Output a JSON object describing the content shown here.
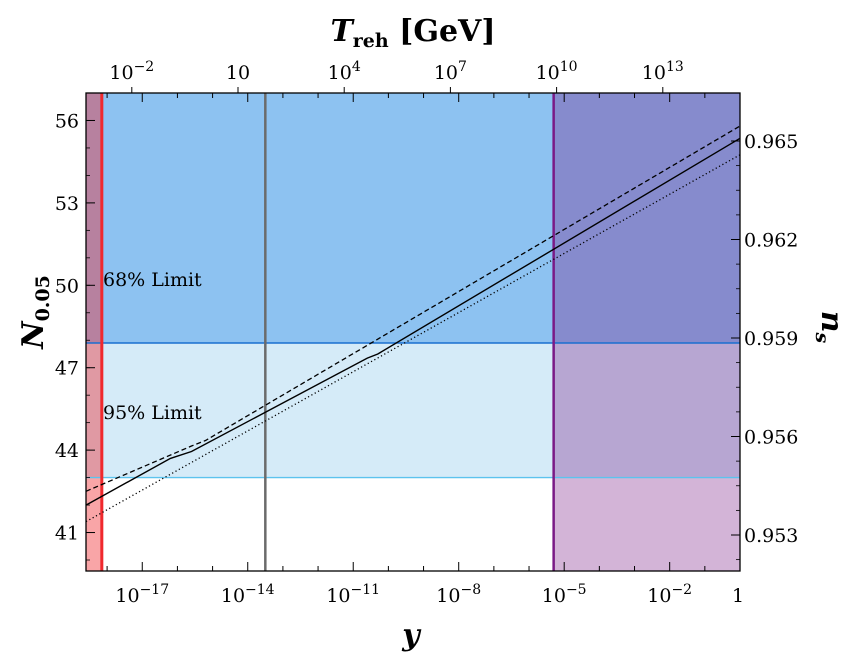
{
  "chart_data": {
    "type": "line",
    "title": "",
    "x_axis_bottom": {
      "label": "y",
      "scale": "log10",
      "range_log10": [
        -18.6,
        0
      ],
      "ticks": [
        {
          "log": -17,
          "base": "10",
          "exp": "−17"
        },
        {
          "log": -14,
          "base": "10",
          "exp": "−14"
        },
        {
          "log": -11,
          "base": "10",
          "exp": "−11"
        },
        {
          "log": -8,
          "base": "10",
          "exp": "−8"
        },
        {
          "log": -5,
          "base": "10",
          "exp": "−5"
        },
        {
          "log": -2,
          "base": "10",
          "exp": "−2"
        },
        {
          "log": 0,
          "base": "1",
          "exp": ""
        }
      ]
    },
    "x_axis_top": {
      "label_main": "T",
      "label_sub": "reh",
      "label_unit": "[GeV]",
      "scale": "log10",
      "ticks": [
        {
          "log": -2,
          "base": "10",
          "exp": "−2"
        },
        {
          "log": 1,
          "base": "10",
          "exp": ""
        },
        {
          "log": 4,
          "base": "10",
          "exp": "4"
        },
        {
          "log": 7,
          "base": "10",
          "exp": "7"
        },
        {
          "log": 10,
          "base": "10",
          "exp": "10"
        },
        {
          "log": 13,
          "base": "10",
          "exp": "13"
        }
      ]
    },
    "y_axis_left": {
      "label_main": "N",
      "label_sub": "0.05",
      "range": [
        39.6,
        57
      ],
      "ticks": [
        "41",
        "44",
        "47",
        "50",
        "53",
        "56"
      ]
    },
    "y_axis_right": {
      "label_main": "n",
      "label_sub": "s",
      "ticks": [
        "0.953",
        "0.956",
        "0.959",
        "0.962",
        "0.965"
      ]
    },
    "regions": {
      "limit_68": {
        "label": "68% Limit",
        "N_min": 47.9,
        "fill": "#8dc2f1",
        "edge": "#1a6fd0",
        "text_color": "#1a6fd0"
      },
      "limit_95": {
        "label": "95% Limit",
        "N_min": 43.0,
        "N_max": 47.9,
        "fill": "#d5ebf8",
        "edge": "#5cc3ee",
        "text_color": "#7ccdf0"
      },
      "excluded_left": {
        "logy_max": -18.15,
        "color": "#f0292d"
      },
      "excluded_right": {
        "logy_min": -5.3,
        "color": "#7a1a86"
      },
      "vertical_marker": {
        "logy": -13.5,
        "color": "#6b6b6b"
      }
    },
    "series": [
      {
        "name": "dashed",
        "style": "dashed",
        "points": [
          [
            -18.6,
            42.5
          ],
          [
            -15.6,
            44.15
          ],
          [
            -15.2,
            44.35
          ],
          [
            0,
            55.8
          ]
        ]
      },
      {
        "name": "solid",
        "style": "solid",
        "points": [
          [
            -18.6,
            42.0
          ],
          [
            -16.2,
            43.7
          ],
          [
            -15.6,
            43.95
          ],
          [
            -10.6,
            47.35
          ],
          [
            -10.3,
            47.5
          ],
          [
            0,
            55.35
          ]
        ]
      },
      {
        "name": "dotted",
        "style": "dotted",
        "points": [
          [
            -18.6,
            41.4
          ],
          [
            0,
            54.75
          ]
        ]
      }
    ]
  }
}
